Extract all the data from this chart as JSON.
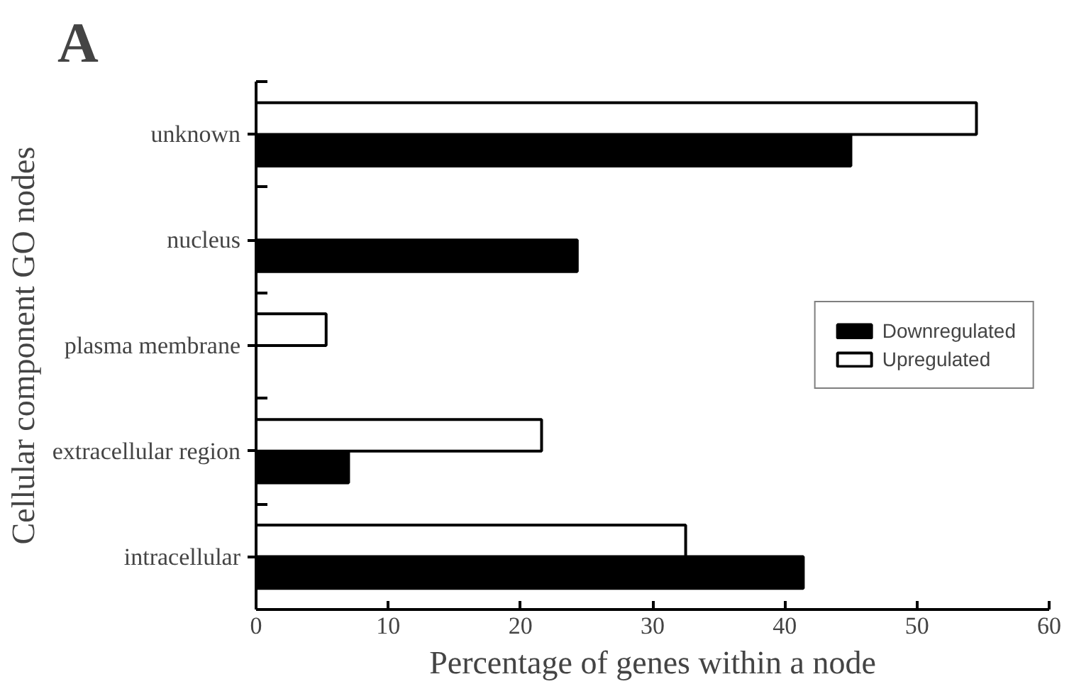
{
  "chart_data": {
    "type": "bar",
    "orientation": "horizontal",
    "title": "A",
    "xlabel": "Percentage of genes within a node",
    "ylabel": "Cellular component GO nodes",
    "categories": [
      "unknown",
      "nucleus",
      "plasma membrane",
      "extracellular region",
      "intracellular"
    ],
    "series": [
      {
        "name": "Downregulated",
        "color": "#000000",
        "values": [
          45.0,
          24.3,
          null,
          7.0,
          41.4
        ]
      },
      {
        "name": "Upregulated",
        "color": "#ffffff",
        "values": [
          54.5,
          null,
          5.3,
          21.6,
          32.5
        ]
      }
    ],
    "xlim": [
      0,
      60
    ],
    "xticks": [
      0,
      10,
      20,
      30,
      40,
      50,
      60
    ],
    "grid": false,
    "legend": "right"
  }
}
